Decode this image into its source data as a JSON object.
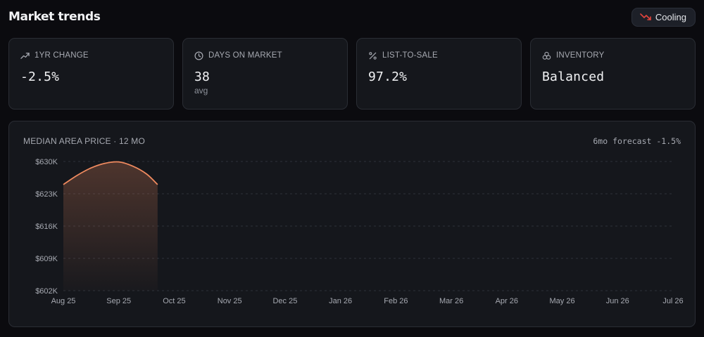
{
  "header": {
    "title": "Market trends",
    "badge": {
      "label": "Cooling",
      "icon": "trending-down-icon",
      "icon_color": "#e2453d"
    }
  },
  "cards": [
    {
      "label": "1YR CHANGE",
      "icon": "trending-up-icon",
      "value": "-2.5%",
      "sub": ""
    },
    {
      "label": "DAYS ON MARKET",
      "icon": "clock-icon",
      "value": "38",
      "sub": "avg"
    },
    {
      "label": "LIST-TO-SALE",
      "icon": "percent-icon",
      "value": "97.2%",
      "sub": ""
    },
    {
      "label": "INVENTORY",
      "icon": "layers-icon",
      "value": "Balanced",
      "sub": ""
    }
  ],
  "chart": {
    "title": "MEDIAN AREA PRICE · 12 MO",
    "forecast": "6mo forecast -1.5%"
  },
  "chart_data": {
    "type": "area",
    "title": "MEDIAN AREA PRICE · 12 MO",
    "categories": [
      "Aug 25",
      "Sep 25",
      "Oct 25",
      "Nov 25",
      "Dec 25",
      "Jan 26",
      "Feb 26",
      "Mar 26",
      "Apr 26",
      "May 26",
      "Jun 26",
      "Jul 26"
    ],
    "y_ticks": [
      "$630K",
      "$623K",
      "$616K",
      "$609K",
      "$602K"
    ],
    "ylim": [
      602000,
      630000
    ],
    "series": [
      {
        "x": [
          0,
          0.25,
          0.5,
          0.75,
          1.0,
          1.25,
          1.5,
          1.7
        ],
        "values": [
          625000,
          627000,
          628600,
          629600,
          629900,
          629000,
          627300,
          625000
        ]
      }
    ],
    "line_color": "#ef8a5f",
    "grid": true
  }
}
